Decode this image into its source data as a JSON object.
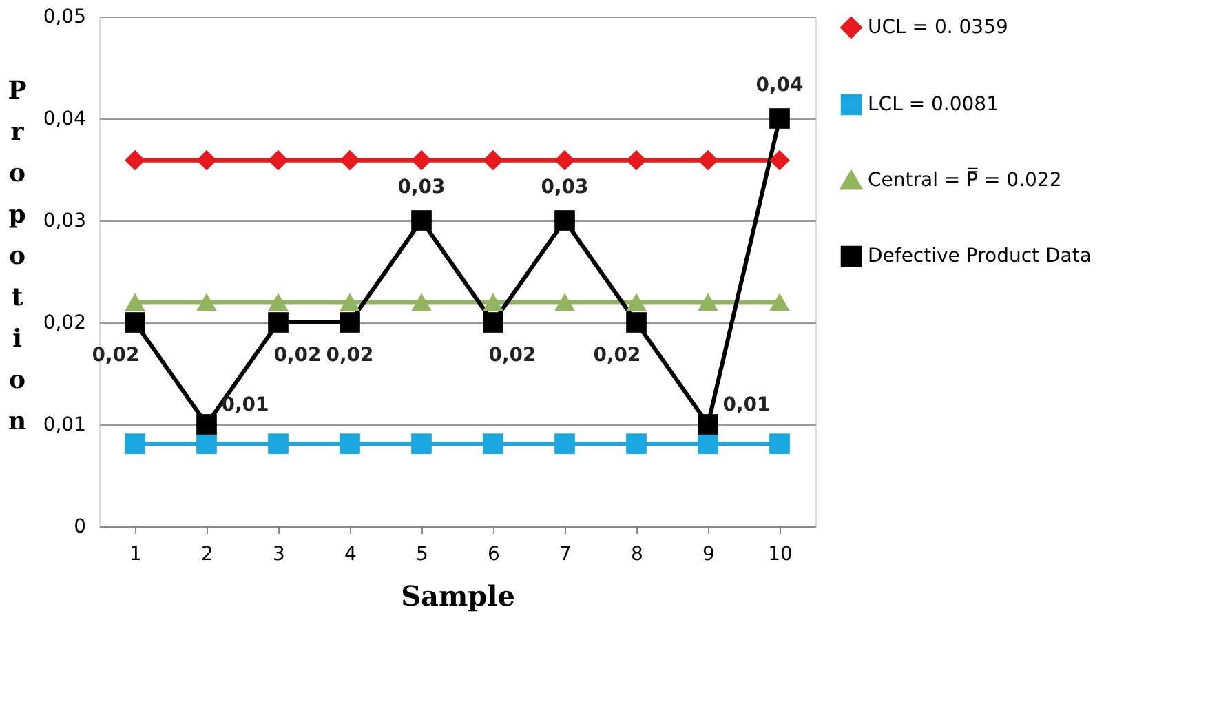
{
  "chart_data": {
    "type": "line",
    "xlabel": "Sample",
    "ylabel": "Propotion",
    "categories": [
      "1",
      "2",
      "3",
      "4",
      "5",
      "6",
      "7",
      "8",
      "9",
      "10"
    ],
    "series": [
      {
        "name": "UCL = 0. 0359",
        "color": "#e41a1c",
        "marker": "diamond",
        "values": [
          0.0359,
          0.0359,
          0.0359,
          0.0359,
          0.0359,
          0.0359,
          0.0359,
          0.0359,
          0.0359,
          0.0359
        ]
      },
      {
        "name": "LCL = 0.0081",
        "color": "#1aa7e0",
        "marker": "square",
        "values": [
          0.0081,
          0.0081,
          0.0081,
          0.0081,
          0.0081,
          0.0081,
          0.0081,
          0.0081,
          0.0081,
          0.0081
        ]
      },
      {
        "name": "Central = P̿ = 0.022",
        "color": "#93b461",
        "marker": "triangle",
        "values": [
          0.022,
          0.022,
          0.022,
          0.022,
          0.022,
          0.022,
          0.022,
          0.022,
          0.022,
          0.022
        ]
      },
      {
        "name": "Defective Product Data",
        "color": "#000000",
        "marker": "square",
        "values": [
          0.02,
          0.01,
          0.02,
          0.02,
          0.03,
          0.02,
          0.03,
          0.02,
          0.01,
          0.04
        ],
        "value_labels": [
          "0,02",
          "0,01",
          "0,02",
          "0,02",
          "0,03",
          "0,02",
          "0,03",
          "0,02",
          "0,01",
          "0,04"
        ]
      }
    ],
    "ylim": [
      0,
      0.05
    ],
    "yticks": [
      0,
      {
        "value": 0.01,
        "label": "0,01"
      },
      {
        "value": 0.02,
        "label": "0,02"
      },
      {
        "value": 0.03,
        "label": "0,03"
      },
      {
        "value": 0.04,
        "label": "0,04"
      },
      {
        "value": 0.05,
        "label": "0,05"
      }
    ],
    "grid": "y",
    "legend": "right",
    "line_style": "solid"
  }
}
